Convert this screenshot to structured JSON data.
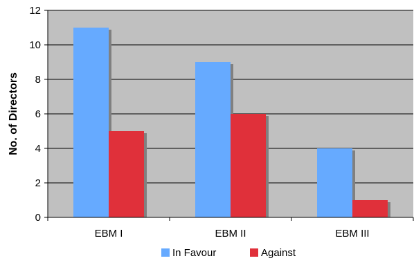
{
  "chart_data": {
    "type": "bar",
    "title": "",
    "xlabel": "",
    "ylabel": "No. of Directors",
    "categories": [
      "EBM I",
      "EBM II",
      "EBM III"
    ],
    "series": [
      {
        "name": "In Favour",
        "values": [
          11,
          9,
          4
        ],
        "color": "#66aaff"
      },
      {
        "name": "Against",
        "values": [
          5,
          6,
          1
        ],
        "color": "#e0303a"
      }
    ],
    "ylim": [
      0,
      12
    ],
    "yticks": [
      0,
      2,
      4,
      6,
      8,
      10,
      12
    ],
    "grid": true,
    "legend": "bottom",
    "plot_background": "#c0c0c0"
  }
}
